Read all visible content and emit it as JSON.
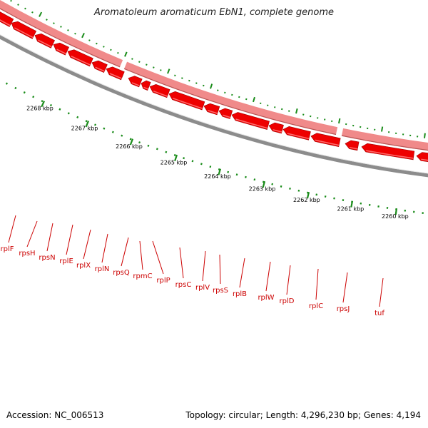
{
  "title": "Aromatoleum aromaticum EbN1, complete genome",
  "accession": "Accession: NC_006513",
  "topology": "Topology: circular; Length: 4,296,230 bp; Genes: 4,194",
  "colors": {
    "gene_fill": "#ee0000",
    "gene_light": "#ff6a6a",
    "shadow_band": "#f08a8a",
    "backbone": "#8c8c8c",
    "tick": "#1a8c1a",
    "label": "#cc0000",
    "kbp_text": "#000000"
  },
  "kbp_labels": [
    "2268 kbp",
    "2267 kbp",
    "2266 kbp",
    "2265 kbp",
    "2264 kbp",
    "2263 kbp",
    "2262 kbp",
    "2261 kbp",
    "2260 kbp"
  ],
  "genes": [
    {
      "name": "rplF"
    },
    {
      "name": "rpsH"
    },
    {
      "name": "rpsN"
    },
    {
      "name": "rplE"
    },
    {
      "name": "rplX"
    },
    {
      "name": "rplN"
    },
    {
      "name": "rpsQ"
    },
    {
      "name": "rpmC"
    },
    {
      "name": "rplP"
    },
    {
      "name": "rpsC"
    },
    {
      "name": "rplV"
    },
    {
      "name": "rpsS"
    },
    {
      "name": "rplB"
    },
    {
      "name": "rplW"
    },
    {
      "name": "rplD"
    },
    {
      "name": "rplC"
    },
    {
      "name": "rpsJ"
    },
    {
      "name": "tuf"
    }
  ]
}
